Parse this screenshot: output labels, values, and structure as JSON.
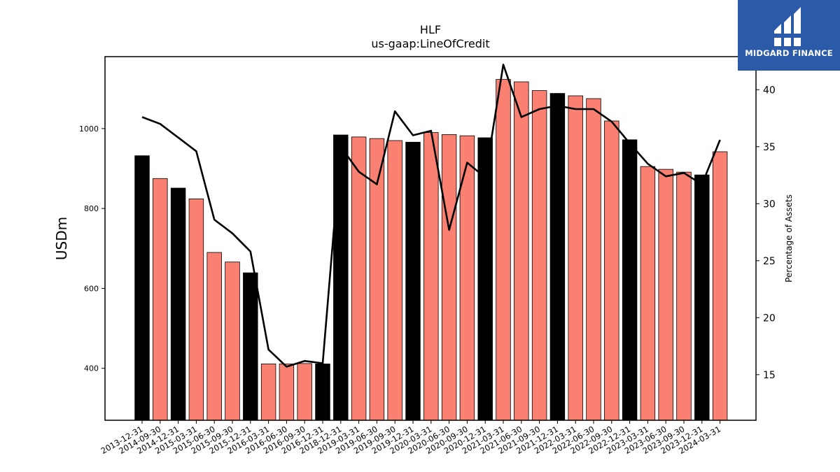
{
  "chart_data": {
    "type": "bar",
    "title": "HLF",
    "subtitle": "us-gaap:LineOfCredit",
    "ylabel": "USDm",
    "y2label": "Percentage of Assets",
    "ylim": [
      270,
      1180
    ],
    "y2lim": [
      11,
      42.9
    ],
    "yticks": [
      400,
      600,
      800,
      1000
    ],
    "y2ticks": [
      15,
      20,
      25,
      30,
      35,
      40
    ],
    "categories": [
      "2013-12-31",
      "2014-09-30",
      "2014-12-31",
      "2015-03-31",
      "2015-06-30",
      "2015-09-30",
      "2015-12-31",
      "2016-03-31",
      "2016-06-30",
      "2016-09-30",
      "2016-12-31",
      "2018-12-31",
      "2019-03-31",
      "2019-06-30",
      "2019-09-30",
      "2019-12-31",
      "2020-03-31",
      "2020-06-30",
      "2020-09-30",
      "2020-12-31",
      "2021-03-31",
      "2021-06-30",
      "2021-09-30",
      "2021-12-31",
      "2022-03-31",
      "2022-06-30",
      "2022-09-30",
      "2022-12-31",
      "2023-03-31",
      "2023-06-30",
      "2023-09-30",
      "2023-12-31",
      "2024-03-31"
    ],
    "series": [
      {
        "type": "bar",
        "values": [
          932,
          875,
          851,
          824,
          690,
          666,
          639,
          411,
          411,
          412,
          411,
          984,
          979,
          975,
          970,
          966,
          990,
          985,
          982,
          977,
          1123,
          1117,
          1095,
          1088,
          1082,
          1075,
          1019,
          972,
          905,
          898,
          891,
          884,
          942
        ]
      },
      {
        "type": "line",
        "axis": "right",
        "values": [
          37.6,
          37.0,
          35.8,
          34.6,
          28.6,
          27.4,
          25.8,
          17.2,
          15.7,
          16.2,
          16.0,
          35.0,
          32.8,
          31.7,
          38.1,
          36.0,
          36.4,
          27.7,
          33.6,
          32.3,
          42.2,
          37.6,
          38.3,
          38.6,
          38.3,
          38.3,
          37.2,
          35.3,
          33.5,
          32.4,
          32.7,
          31.7,
          35.6
        ]
      }
    ],
    "colors": {
      "annual_bar": "#000000",
      "quarter_bar": "#fa8072",
      "line": "#000000"
    },
    "annual_categories": [
      "2013-12-31",
      "2014-12-31",
      "2015-12-31",
      "2016-12-31",
      "2018-12-31",
      "2019-12-31",
      "2020-12-31",
      "2021-12-31",
      "2022-12-31",
      "2023-12-31"
    ],
    "grid": false,
    "legend": "none"
  },
  "logo": {
    "text": "MIDGARD FINANCE",
    "background": "#2a5aa8"
  }
}
